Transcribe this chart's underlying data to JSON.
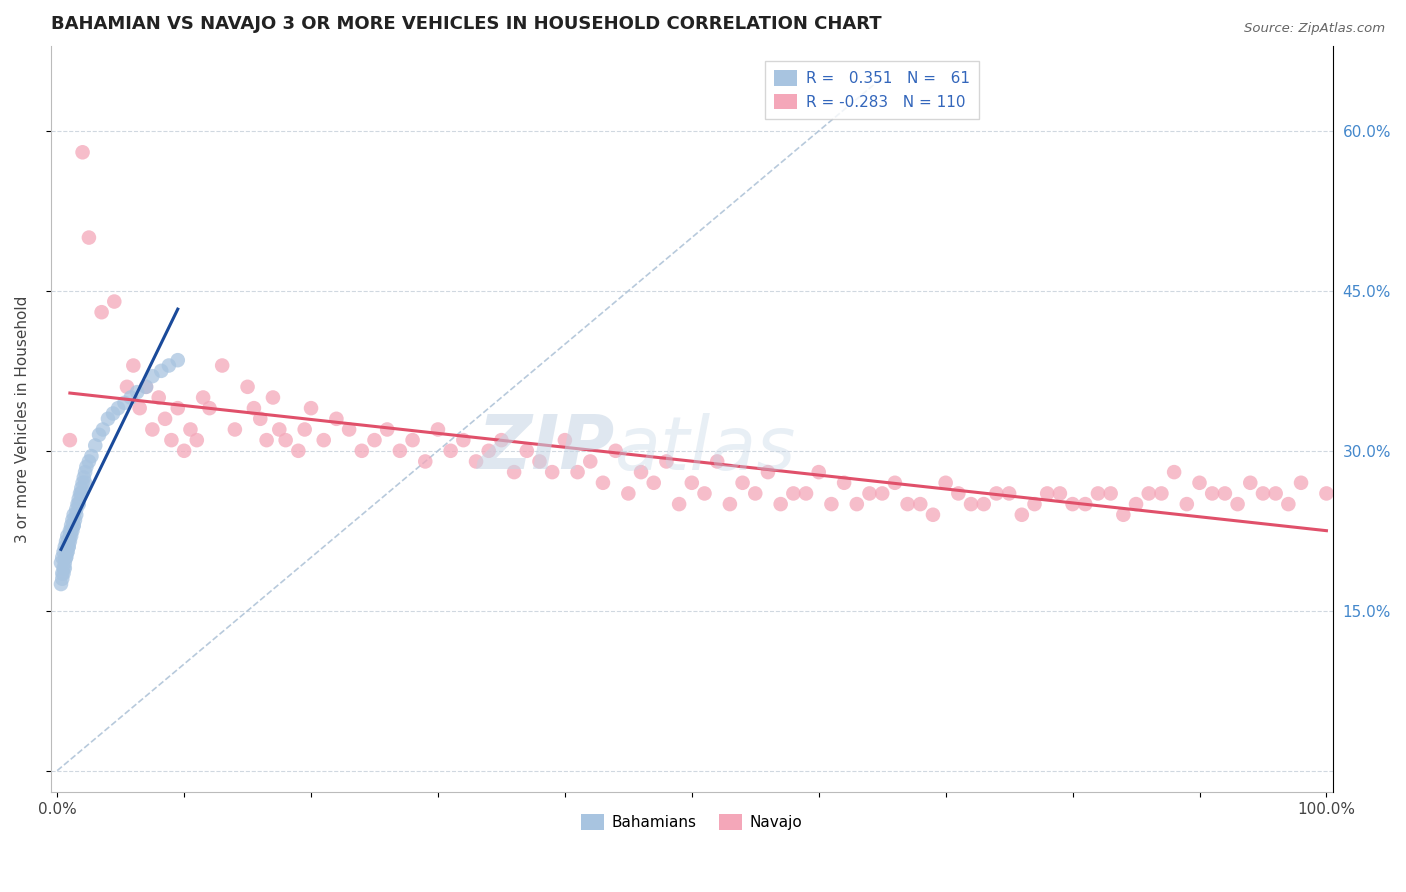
{
  "title": "BAHAMIAN VS NAVAJO 3 OR MORE VEHICLES IN HOUSEHOLD CORRELATION CHART",
  "source": "Source: ZipAtlas.com",
  "ylabel": "3 or more Vehicles in Household",
  "xlim": [
    -0.005,
    1.005
  ],
  "ylim": [
    -0.02,
    0.68
  ],
  "xticks": [
    0.0,
    0.1,
    0.2,
    0.3,
    0.4,
    0.5,
    0.6,
    0.7,
    0.8,
    0.9,
    1.0
  ],
  "xtick_labels": [
    "0.0%",
    "",
    "",
    "",
    "",
    "",
    "",
    "",
    "",
    "",
    "100.0%"
  ],
  "yticks": [
    0.0,
    0.15,
    0.3,
    0.45,
    0.6
  ],
  "ytick_labels": [
    "",
    "15.0%",
    "30.0%",
    "45.0%",
    "60.0%"
  ],
  "legend_r_blue": "0.351",
  "legend_n_blue": "61",
  "legend_r_pink": "-0.283",
  "legend_n_pink": "110",
  "blue_color": "#a8c4e0",
  "pink_color": "#f4a7b9",
  "blue_line_color": "#1a4a9a",
  "pink_line_color": "#e0506a",
  "diag_line_color": "#b0c4d8",
  "grid_color": "#d0d8e0",
  "watermark_zip": "ZIP",
  "watermark_atlas": "atlas",
  "bahamian_x": [
    0.003,
    0.004,
    0.004,
    0.005,
    0.005,
    0.006,
    0.006,
    0.007,
    0.007,
    0.008,
    0.008,
    0.009,
    0.009,
    0.01,
    0.01,
    0.011,
    0.011,
    0.012,
    0.012,
    0.013,
    0.013,
    0.014,
    0.015,
    0.016,
    0.017,
    0.018,
    0.019,
    0.02,
    0.021,
    0.022,
    0.023,
    0.025,
    0.027,
    0.03,
    0.033,
    0.036,
    0.04,
    0.044,
    0.048,
    0.053,
    0.058,
    0.063,
    0.07,
    0.075,
    0.082,
    0.088,
    0.095,
    0.003,
    0.004,
    0.005,
    0.006,
    0.007,
    0.008,
    0.009,
    0.01,
    0.011,
    0.013,
    0.015,
    0.017,
    0.019,
    0.022
  ],
  "bahamian_y": [
    0.195,
    0.185,
    0.2,
    0.205,
    0.19,
    0.21,
    0.195,
    0.2,
    0.215,
    0.205,
    0.22,
    0.21,
    0.215,
    0.225,
    0.22,
    0.225,
    0.23,
    0.235,
    0.225,
    0.24,
    0.23,
    0.235,
    0.245,
    0.25,
    0.255,
    0.26,
    0.265,
    0.27,
    0.275,
    0.28,
    0.285,
    0.29,
    0.295,
    0.305,
    0.315,
    0.32,
    0.33,
    0.335,
    0.34,
    0.345,
    0.35,
    0.355,
    0.36,
    0.37,
    0.375,
    0.38,
    0.385,
    0.175,
    0.18,
    0.185,
    0.19,
    0.2,
    0.205,
    0.21,
    0.215,
    0.22,
    0.23,
    0.24,
    0.25,
    0.26,
    0.27
  ],
  "navajo_x": [
    0.01,
    0.02,
    0.025,
    0.035,
    0.045,
    0.055,
    0.06,
    0.065,
    0.07,
    0.075,
    0.08,
    0.085,
    0.09,
    0.095,
    0.1,
    0.105,
    0.11,
    0.115,
    0.12,
    0.13,
    0.14,
    0.15,
    0.155,
    0.16,
    0.165,
    0.17,
    0.175,
    0.18,
    0.19,
    0.195,
    0.2,
    0.21,
    0.22,
    0.23,
    0.24,
    0.25,
    0.26,
    0.27,
    0.28,
    0.29,
    0.3,
    0.31,
    0.32,
    0.33,
    0.34,
    0.35,
    0.36,
    0.37,
    0.38,
    0.39,
    0.4,
    0.42,
    0.44,
    0.46,
    0.48,
    0.5,
    0.52,
    0.54,
    0.56,
    0.58,
    0.6,
    0.62,
    0.64,
    0.66,
    0.68,
    0.7,
    0.72,
    0.74,
    0.76,
    0.78,
    0.8,
    0.82,
    0.84,
    0.86,
    0.88,
    0.9,
    0.92,
    0.94,
    0.96,
    0.98,
    1.0,
    0.41,
    0.43,
    0.45,
    0.47,
    0.49,
    0.51,
    0.53,
    0.55,
    0.57,
    0.59,
    0.61,
    0.63,
    0.65,
    0.67,
    0.69,
    0.71,
    0.73,
    0.75,
    0.77,
    0.79,
    0.81,
    0.83,
    0.85,
    0.87,
    0.89,
    0.91,
    0.93,
    0.95,
    0.97
  ],
  "navajo_y": [
    0.31,
    0.58,
    0.5,
    0.43,
    0.44,
    0.36,
    0.38,
    0.34,
    0.36,
    0.32,
    0.35,
    0.33,
    0.31,
    0.34,
    0.3,
    0.32,
    0.31,
    0.35,
    0.34,
    0.38,
    0.32,
    0.36,
    0.34,
    0.33,
    0.31,
    0.35,
    0.32,
    0.31,
    0.3,
    0.32,
    0.34,
    0.31,
    0.33,
    0.32,
    0.3,
    0.31,
    0.32,
    0.3,
    0.31,
    0.29,
    0.32,
    0.3,
    0.31,
    0.29,
    0.3,
    0.31,
    0.28,
    0.3,
    0.29,
    0.28,
    0.31,
    0.29,
    0.3,
    0.28,
    0.29,
    0.27,
    0.29,
    0.27,
    0.28,
    0.26,
    0.28,
    0.27,
    0.26,
    0.27,
    0.25,
    0.27,
    0.25,
    0.26,
    0.24,
    0.26,
    0.25,
    0.26,
    0.24,
    0.26,
    0.28,
    0.27,
    0.26,
    0.27,
    0.26,
    0.27,
    0.26,
    0.28,
    0.27,
    0.26,
    0.27,
    0.25,
    0.26,
    0.25,
    0.26,
    0.25,
    0.26,
    0.25,
    0.25,
    0.26,
    0.25,
    0.24,
    0.26,
    0.25,
    0.26,
    0.25,
    0.26,
    0.25,
    0.26,
    0.25,
    0.26,
    0.25,
    0.26,
    0.25,
    0.26,
    0.25
  ]
}
